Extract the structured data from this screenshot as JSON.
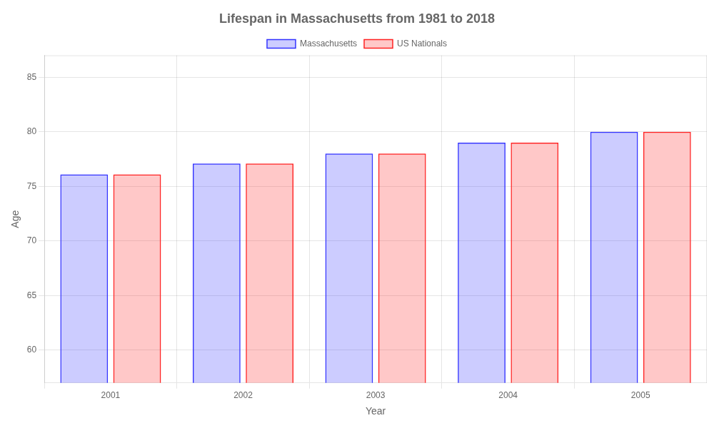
{
  "chart_data": {
    "type": "bar",
    "title": "Lifespan in Massachusetts from 1981 to 2018",
    "xlabel": "Year",
    "ylabel": "Age",
    "categories": [
      "2001",
      "2002",
      "2003",
      "2004",
      "2005"
    ],
    "series": [
      {
        "name": "Massachusetts",
        "color": "#3333ff",
        "values": [
          76.1,
          77.1,
          78.0,
          79.0,
          80.0
        ]
      },
      {
        "name": "US Nationals",
        "color": "#ff2222",
        "values": [
          76.1,
          77.1,
          78.0,
          79.0,
          80.0
        ]
      }
    ],
    "ylim": [
      57,
      87
    ],
    "yticks": [
      60,
      65,
      70,
      75,
      80,
      85
    ],
    "grid": true,
    "legend": "top"
  }
}
